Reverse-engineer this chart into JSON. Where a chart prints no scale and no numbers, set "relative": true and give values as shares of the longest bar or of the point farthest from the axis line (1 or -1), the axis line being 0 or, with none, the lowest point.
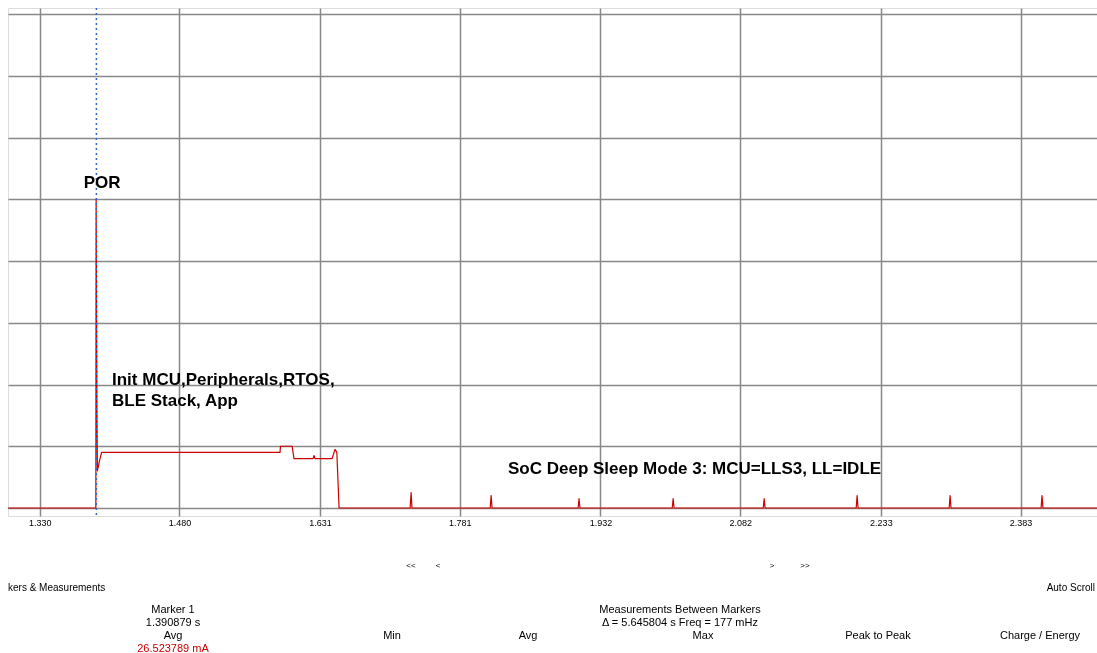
{
  "chart_data": {
    "type": "line",
    "relative": true,
    "grid": true,
    "marker": "none",
    "line_style": "solid",
    "xlim": [
      1.296,
      2.465
    ],
    "xticks": [
      {
        "value": 1.33,
        "label": "1.330"
      },
      {
        "value": 1.48,
        "label": "1.480"
      },
      {
        "value": 1.631,
        "label": "1.631"
      },
      {
        "value": 1.781,
        "label": "1.781"
      },
      {
        "value": 1.932,
        "label": "1.932"
      },
      {
        "value": 2.082,
        "label": "2.082"
      },
      {
        "value": 2.233,
        "label": "2.233"
      },
      {
        "value": 2.383,
        "label": "2.383"
      }
    ],
    "x": [
      1.296,
      1.389,
      1.3903,
      1.3906,
      1.3915,
      1.392,
      1.394,
      1.3965,
      1.588,
      1.5885,
      1.601,
      1.603,
      1.6235,
      1.6245,
      1.6255,
      1.6439,
      1.647,
      1.649,
      1.6514,
      1.7277,
      1.7287,
      1.7297,
      1.8136,
      1.8146,
      1.8156,
      1.908,
      1.909,
      1.91,
      2.009,
      2.01,
      2.011,
      2.1067,
      2.1077,
      2.1087,
      2.2065,
      2.2075,
      2.2085,
      2.3063,
      2.3073,
      2.3083,
      2.405,
      2.406,
      2.407,
      2.465
    ],
    "series": [
      {
        "color": "#cc0000",
        "values": [
          0,
          0,
          0,
          1.0,
          0.3,
          0.12,
          0.15,
          0.18,
          0.18,
          0.2,
          0.2,
          0.16,
          0.16,
          0.17,
          0.16,
          0.16,
          0.19,
          0.18,
          0,
          0,
          0.05,
          0,
          0,
          0.04,
          0,
          0,
          0.03,
          0,
          0,
          0.03,
          0,
          0,
          0.03,
          0,
          0,
          0.04,
          0,
          0,
          0.04,
          0,
          0,
          0.04,
          0,
          0
        ]
      }
    ],
    "ref_lines": [
      {
        "axis": "x",
        "value": 1.390879,
        "color": "#3366cc",
        "line_style": "dotted"
      }
    ],
    "annotations": [
      {
        "text": "POR",
        "x": 1.3906,
        "y": 1.0
      },
      "Init MCU,Peripherals,RTOS,\nBLE Stack, App",
      "SoC Deep Sleep Mode 3: MCU=LLS3, LL=IDLE",
      "<<",
      "<",
      ">",
      ">>",
      "kers & Measurements",
      "Auto Scroll",
      "Marker 1",
      "1.390879 s",
      "Avg",
      "26.523789 mA",
      "Measurements Between Markers",
      "Δ = 5.645804 s   Freq = 177 mHz",
      "Min",
      "Avg",
      "Max",
      "Peak to Peak",
      "Charge / Energy"
    ]
  }
}
